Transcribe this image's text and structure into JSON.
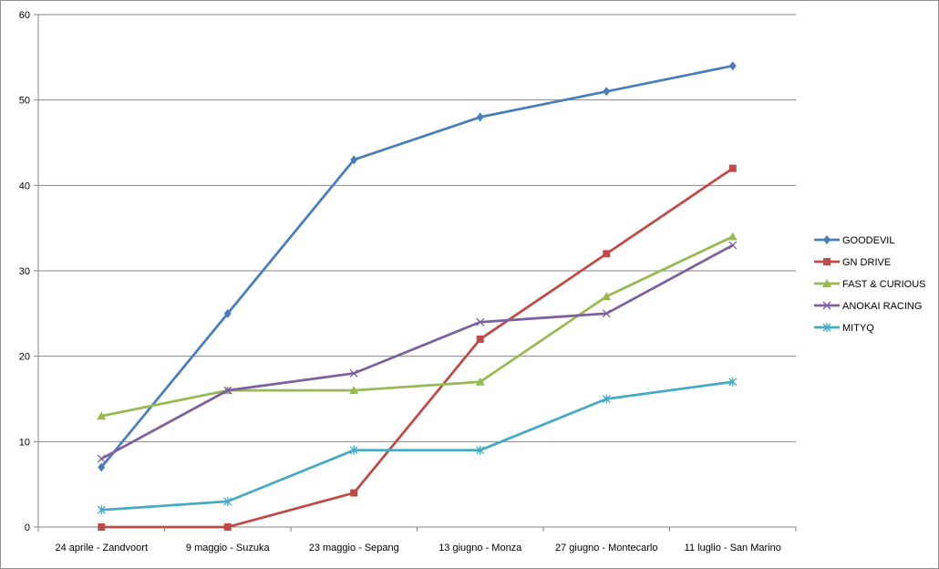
{
  "chart_data": {
    "type": "line",
    "title": "",
    "xlabel": "",
    "ylabel": "",
    "categories": [
      "24 aprile - Zandvoort",
      "9 maggio - Suzuka",
      "23 maggio - Sepang",
      "13 giugno - Monza",
      "27 giugno - Montecarlo",
      "11 luglio - San Marino"
    ],
    "ylim": [
      0,
      60
    ],
    "yticks": [
      0,
      10,
      20,
      30,
      40,
      50,
      60
    ],
    "grid": true,
    "legend_position": "right",
    "series": [
      {
        "name": "GOODEVIL",
        "color": "#4a7ebb",
        "marker": "diamond",
        "values": [
          7,
          25,
          43,
          48,
          51,
          54
        ]
      },
      {
        "name": "GN DRIVE",
        "color": "#be4b48",
        "marker": "square",
        "values": [
          0,
          0,
          4,
          22,
          32,
          42
        ]
      },
      {
        "name": "FAST & CURIOUS",
        "color": "#98b954",
        "marker": "triangle",
        "values": [
          13,
          16,
          16,
          17,
          27,
          34
        ]
      },
      {
        "name": "ANOKAI RACING",
        "color": "#7d60a0",
        "marker": "x",
        "values": [
          8,
          16,
          18,
          24,
          25,
          33
        ]
      },
      {
        "name": "MITYQ",
        "color": "#46aac5",
        "marker": "star",
        "values": [
          2,
          3,
          9,
          9,
          15,
          17
        ]
      }
    ]
  }
}
